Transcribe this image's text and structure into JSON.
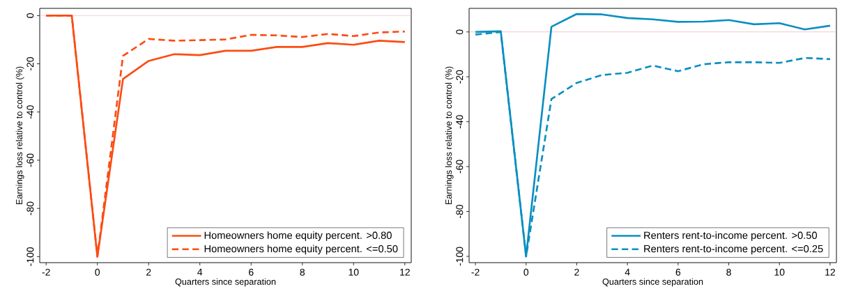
{
  "chart_data": [
    {
      "type": "line",
      "xlabel": "Quarters since separation",
      "ylabel": "Earnings loss relative to control (%)",
      "x": [
        -2,
        -1,
        0,
        1,
        2,
        3,
        4,
        5,
        6,
        7,
        8,
        9,
        10,
        11,
        12
      ],
      "series": [
        {
          "name": "Homeowners home equity percent. >0.80",
          "color": "#fc4c12",
          "line_style": "solid",
          "values": [
            0,
            0,
            -100,
            -26.3,
            -18.8,
            -16.0,
            -16.4,
            -14.6,
            -14.6,
            -13.0,
            -13.0,
            -11.4,
            -12.1,
            -10.4,
            -11.0
          ]
        },
        {
          "name": "Homeowners home equity percent. <=0.50",
          "color": "#fc4c12",
          "line_style": "dashed",
          "values": [
            0,
            0,
            -100,
            -16.7,
            -9.7,
            -10.4,
            -10.2,
            -9.9,
            -8.0,
            -8.2,
            -8.9,
            -7.6,
            -8.5,
            -7.0,
            -6.6
          ]
        }
      ],
      "xlim": [
        -2.25,
        12.25
      ],
      "ylim": [
        -102.5,
        3
      ],
      "xticks": [
        -2,
        0,
        2,
        4,
        6,
        8,
        10,
        12
      ],
      "yticks": [
        -100,
        -80,
        -60,
        -40,
        -20,
        0
      ],
      "ref_lines": [
        {
          "axis": "y",
          "value": 0,
          "color": "#f0a0b8"
        }
      ],
      "legend": "bottom right"
    },
    {
      "type": "line",
      "xlabel": "Quarters since separation",
      "ylabel": "Earnings loss relative to control (%)",
      "x": [
        -2,
        -1,
        0,
        1,
        2,
        3,
        4,
        5,
        6,
        7,
        8,
        9,
        10,
        11,
        12
      ],
      "series": [
        {
          "name": "Renters rent-to-income percent. >0.50",
          "color": "#0a8fc0",
          "line_style": "solid",
          "values": [
            0,
            0.3,
            -100,
            2.3,
            8.0,
            7.8,
            6.2,
            5.6,
            4.5,
            4.6,
            5.3,
            3.4,
            3.9,
            1.1,
            2.8
          ]
        },
        {
          "name": "Renters rent-to-income percent. <=0.25",
          "color": "#0a8fc0",
          "line_style": "dashed",
          "values": [
            -1.2,
            0,
            -100,
            -29.9,
            -22.7,
            -19.2,
            -18.2,
            -15.0,
            -17.5,
            -14.4,
            -13.5,
            -13.5,
            -13.8,
            -11.6,
            -12.1
          ]
        }
      ],
      "xlim": [
        -2.25,
        12.25
      ],
      "ylim": [
        -102.8,
        10.5
      ],
      "xticks": [
        -2,
        0,
        2,
        4,
        6,
        8,
        10,
        12
      ],
      "yticks": [
        -100,
        -80,
        -60,
        -40,
        -20,
        0
      ],
      "ref_lines": [
        {
          "axis": "y",
          "value": 0,
          "color": "#f0a0b8"
        }
      ],
      "legend": "bottom right"
    }
  ]
}
